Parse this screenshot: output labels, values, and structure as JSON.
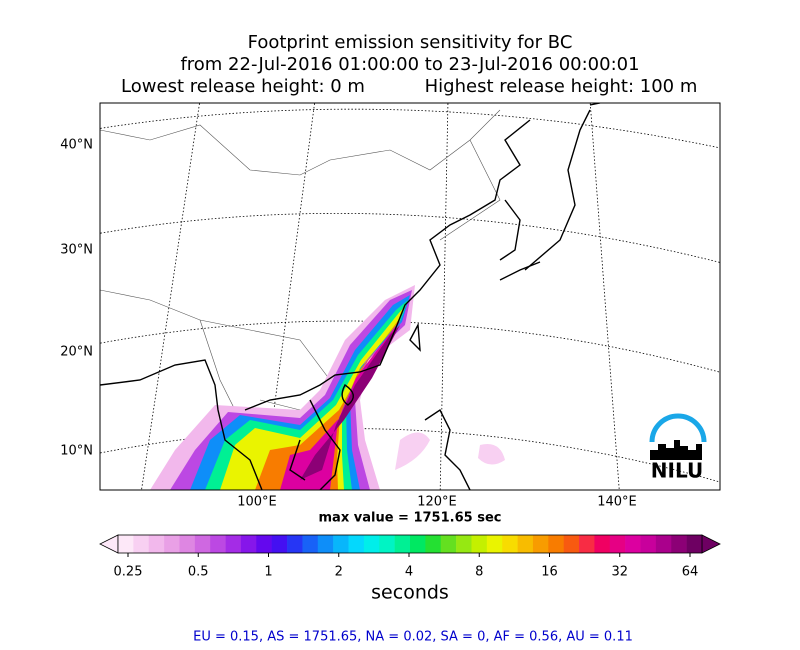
{
  "title": [
    "Footprint emission sensitivity for BC",
    "from 22-Jul-2016 01:00:00 to 23-Jul-2016 00:00:01",
    "Lowest release height: 0 m",
    "Highest release height: 100 m"
  ],
  "map": {
    "lat_labels": [
      "40°N",
      "30°N",
      "20°N",
      "10°N"
    ],
    "lon_labels": [
      "100°E",
      "120°E",
      "140°E"
    ],
    "logo": "NILU"
  },
  "max_value": "max value = 1751.65 sec",
  "colorbar": {
    "tick_labels": [
      "0.25",
      "0.5",
      "1",
      "2",
      "4",
      "8",
      "16",
      "32",
      "64"
    ],
    "label": "seconds",
    "colors": [
      "#fde8f8",
      "#f8d0f2",
      "#f2b8ec",
      "#e9a0e6",
      "#de86e2",
      "#cf68e1",
      "#bc48e3",
      "#a42ce6",
      "#8616ea",
      "#6408ee",
      "#4410f2",
      "#2636f5",
      "#1862f7",
      "#0e8ef9",
      "#08b6fb",
      "#04d8fd",
      "#00eeea",
      "#00f4c4",
      "#00f094",
      "#00e862",
      "#24e032",
      "#64e020",
      "#96e812",
      "#c4f000",
      "#eaf400",
      "#f8dc00",
      "#f8bc00",
      "#f89c00",
      "#f87c00",
      "#f85a10",
      "#f82c44",
      "#f00062",
      "#e60084",
      "#dc00a0",
      "#c8009c",
      "#aa008c",
      "#8c0076",
      "#6e0062"
    ]
  },
  "footer": "EU = 0.15,  AS = 1751.65,  NA = 0.02,  SA = 0,  AF = 0.56,  AU = 0.11"
}
